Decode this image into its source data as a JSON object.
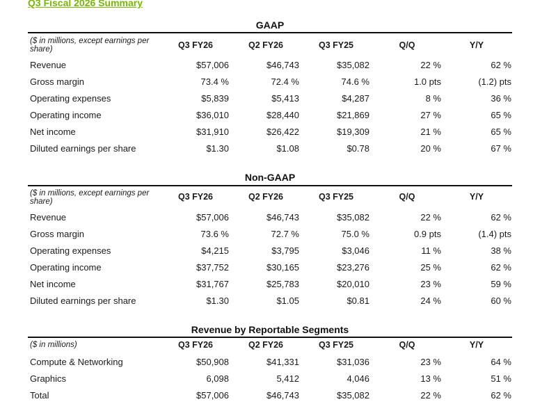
{
  "title": "Q3 Fiscal 2026 Summary",
  "columns": [
    "Q3 FY26",
    "Q2 FY26",
    "Q3 FY25",
    "Q/Q",
    "Y/Y"
  ],
  "sections": [
    {
      "heading": "GAAP",
      "note": "($ in millions, except earnings per share)",
      "rows": [
        {
          "label": "Revenue",
          "values": [
            "$57,006",
            "$46,743",
            "$35,082",
            "22 %",
            "62 %"
          ]
        },
        {
          "label": "Gross margin",
          "values": [
            "73.4 %",
            "72.4 %",
            "74.6 %",
            "1.0 pts",
            "(1.2) pts"
          ]
        },
        {
          "label": "Operating expenses",
          "values": [
            "$5,839",
            "$5,413",
            "$4,287",
            "8 %",
            "36 %"
          ]
        },
        {
          "label": "Operating income",
          "values": [
            "$36,010",
            "$28,440",
            "$21,869",
            "27 %",
            "65 %"
          ]
        },
        {
          "label": "Net income",
          "values": [
            "$31,910",
            "$26,422",
            "$19,309",
            "21 %",
            "65 %"
          ]
        },
        {
          "label": "Diluted earnings per share",
          "values": [
            "$1.30",
            "$1.08",
            "$0.78",
            "20 %",
            "67 %"
          ]
        }
      ]
    },
    {
      "heading": "Non-GAAP",
      "note": "($ in millions, except earnings per share)",
      "rows": [
        {
          "label": "Revenue",
          "values": [
            "$57,006",
            "$46,743",
            "$35,082",
            "22 %",
            "62 %"
          ]
        },
        {
          "label": "Gross margin",
          "values": [
            "73.6 %",
            "72.7 %",
            "75.0 %",
            "0.9 pts",
            "(1.4) pts"
          ]
        },
        {
          "label": "Operating expenses",
          "values": [
            "$4,215",
            "$3,795",
            "$3,046",
            "11 %",
            "38 %"
          ]
        },
        {
          "label": "Operating income",
          "values": [
            "$37,752",
            "$30,165",
            "$23,276",
            "25 %",
            "62 %"
          ]
        },
        {
          "label": "Net income",
          "values": [
            "$31,767",
            "$25,783",
            "$20,010",
            "23 %",
            "59 %"
          ]
        },
        {
          "label": "Diluted earnings per share",
          "values": [
            "$1.30",
            "$1.05",
            "$0.81",
            "24 %",
            "60 %"
          ]
        }
      ]
    },
    {
      "heading": "Revenue by Reportable Segments",
      "note": "($ in millions)",
      "rows": [
        {
          "label": "Compute & Networking",
          "values": [
            "$50,908",
            "$41,331",
            "$31,036",
            "23 %",
            "64 %"
          ]
        },
        {
          "label": "Graphics",
          "values": [
            "6,098",
            "5,412",
            "4,046",
            "13 %",
            "51 %"
          ]
        },
        {
          "label": "Total",
          "values": [
            "$57,006",
            "$46,743",
            "$35,082",
            "22 %",
            "62 %"
          ]
        }
      ]
    }
  ]
}
